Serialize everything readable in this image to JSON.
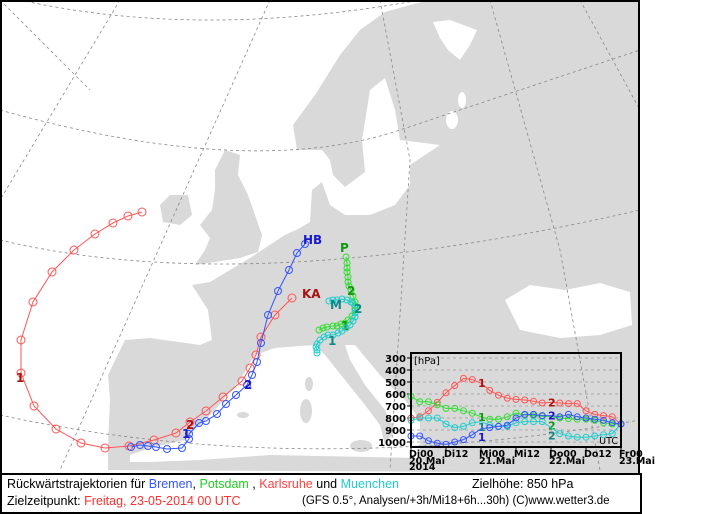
{
  "map": {
    "stations": {
      "bremen": "HB",
      "karlsruhe": "KA",
      "potsdam": "P",
      "muenchen": "M"
    },
    "day_markers": {
      "one": "1",
      "two": "2"
    },
    "colors": {
      "bremen": "#3355ff",
      "potsdam": "#33dd33",
      "karlsruhe": "#ff5555",
      "muenchen": "#22cccc",
      "land": "#d9d9d9",
      "sea": "#ffffff"
    }
  },
  "legend": {
    "title": "Rückwärtstrajektorien  für",
    "bremen": "Bremen",
    "comma1": ",",
    "potsdam": "Potsdam",
    "comma2": " ,",
    "karlsruhe": "Karlsruhe",
    "und": "und",
    "muenchen": "Muenchen",
    "target_height": "Zielhöhe:  850  hPa",
    "target_time_label": "Zielzeitpunkt:",
    "target_time_value": "Freitag,  23-05-2014    00  UTC",
    "source": "(GFS 0.5°, Analysen/+3h/Mi18+6h...30h) (C)www.wetter3.de"
  },
  "chart_data": {
    "type": "line",
    "title": "",
    "ylabel": "[hPa]",
    "xlabel": "UTC",
    "ylim": [
      1000,
      300
    ],
    "yticks": [
      "300",
      "400",
      "500",
      "600",
      "700",
      "800",
      "900",
      "1000"
    ],
    "ytick_values": [
      300,
      400,
      500,
      600,
      700,
      800,
      900,
      1000
    ],
    "xticks": [
      "Di00",
      "Di12",
      "Mi00",
      "Mi12",
      "Do00",
      "Do12",
      "Fr00"
    ],
    "xtick_hours": [
      0,
      12,
      24,
      36,
      48,
      60,
      72
    ],
    "date_labels": [
      {
        "hour": 0,
        "text": "20.Mai"
      },
      {
        "hour": 24,
        "text": "21.Mai"
      },
      {
        "hour": 48,
        "text": "22.Mai"
      },
      {
        "hour": 72,
        "text": "23.Mai"
      }
    ],
    "year_label": "2014",
    "x_hours_step": 3,
    "day_labels": [
      "1",
      "2"
    ],
    "series": [
      {
        "name": "Karlsruhe",
        "color": "#ff5555",
        "label_color": "#aa1111",
        "values": [
          800,
          790,
          740,
          670,
          590,
          530,
          470,
          480,
          510,
          570,
          610,
          635,
          645,
          650,
          660,
          675,
          670,
          675,
          680,
          680,
          740,
          770,
          780,
          790,
          850
        ]
      },
      {
        "name": "Potsdam",
        "color": "#33dd33",
        "label_color": "#119911",
        "values": [
          620,
          665,
          665,
          690,
          720,
          720,
          740,
          760,
          790,
          810,
          810,
          790,
          760,
          775,
          780,
          785,
          790,
          800,
          805,
          810,
          810,
          820,
          840,
          850,
          850
        ]
      },
      {
        "name": "Muenchen",
        "color": "#22cccc",
        "label_color": "#118888",
        "values": [
          820,
          800,
          800,
          800,
          850,
          880,
          870,
          840,
          830,
          860,
          870,
          870,
          840,
          830,
          830,
          830,
          880,
          930,
          950,
          960,
          960,
          950,
          940,
          930,
          850
        ]
      },
      {
        "name": "Bremen",
        "color": "#3355ff",
        "label_color": "#1a1acc",
        "values": [
          950,
          950,
          990,
          1010,
          1020,
          1000,
          980,
          940,
          890,
          880,
          870,
          860,
          800,
          770,
          770,
          780,
          780,
          790,
          770,
          790,
          800,
          810,
          820,
          840,
          850
        ]
      }
    ]
  }
}
